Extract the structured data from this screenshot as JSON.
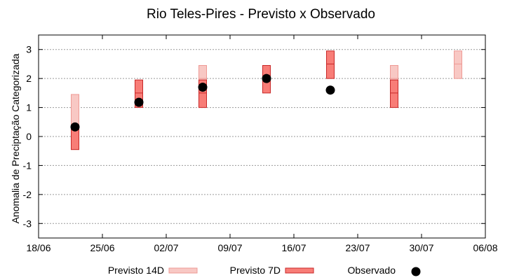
{
  "chart_data": {
    "type": "range-bar",
    "title": "Rio Teles-Pires - Previsto x Observado",
    "xlabel": "",
    "ylabel": "Anomalia de Preciptação Categorizada",
    "x_ticks": [
      "18/06",
      "25/06",
      "02/07",
      "09/07",
      "16/07",
      "23/07",
      "30/07",
      "06/08"
    ],
    "x_range": [
      "18/06",
      "06/08"
    ],
    "ylim": [
      -3.5,
      3.5
    ],
    "y_ticks": [
      -3,
      -2,
      -1,
      0,
      1,
      2,
      3
    ],
    "grid": "horizontal dotted",
    "legend_position": "bottom",
    "series": [
      {
        "name": "Previsto 14D",
        "color": "#f8c8c4",
        "edge": "#ee9a95",
        "ranges": [
          {
            "x": "22/06",
            "low": -0.45,
            "high": 1.45,
            "mid": 0.3
          },
          {
            "x": "06/07",
            "low": 1.0,
            "high": 2.45,
            "mid": 2.0
          },
          {
            "x": "27/07",
            "low": 1.5,
            "high": 2.45,
            "mid": 2.0
          },
          {
            "x": "03/08",
            "low": 2.0,
            "high": 2.95,
            "mid": 2.5
          }
        ]
      },
      {
        "name": "Previsto 7D",
        "color": "#f87d77",
        "edge": "#c82828",
        "ranges": [
          {
            "x": "22/06",
            "low": -0.45,
            "high": 0.3,
            "mid": 0.3
          },
          {
            "x": "29/06",
            "low": 1.0,
            "high": 1.95,
            "mid": 1.5
          },
          {
            "x": "06/07",
            "low": 1.0,
            "high": 1.95,
            "mid": 1.5
          },
          {
            "x": "13/07",
            "low": 1.5,
            "high": 2.45,
            "mid": 2.0
          },
          {
            "x": "20/07",
            "low": 2.0,
            "high": 2.95,
            "mid": 2.5
          },
          {
            "x": "27/07",
            "low": 1.0,
            "high": 1.95,
            "mid": 1.5
          }
        ]
      },
      {
        "name": "Observado",
        "color": "#000000",
        "points": [
          {
            "x": "22/06",
            "y": 0.33
          },
          {
            "x": "29/06",
            "y": 1.18
          },
          {
            "x": "06/07",
            "y": 1.7
          },
          {
            "x": "13/07",
            "y": 2.0
          },
          {
            "x": "20/07",
            "y": 1.6
          }
        ]
      }
    ]
  }
}
